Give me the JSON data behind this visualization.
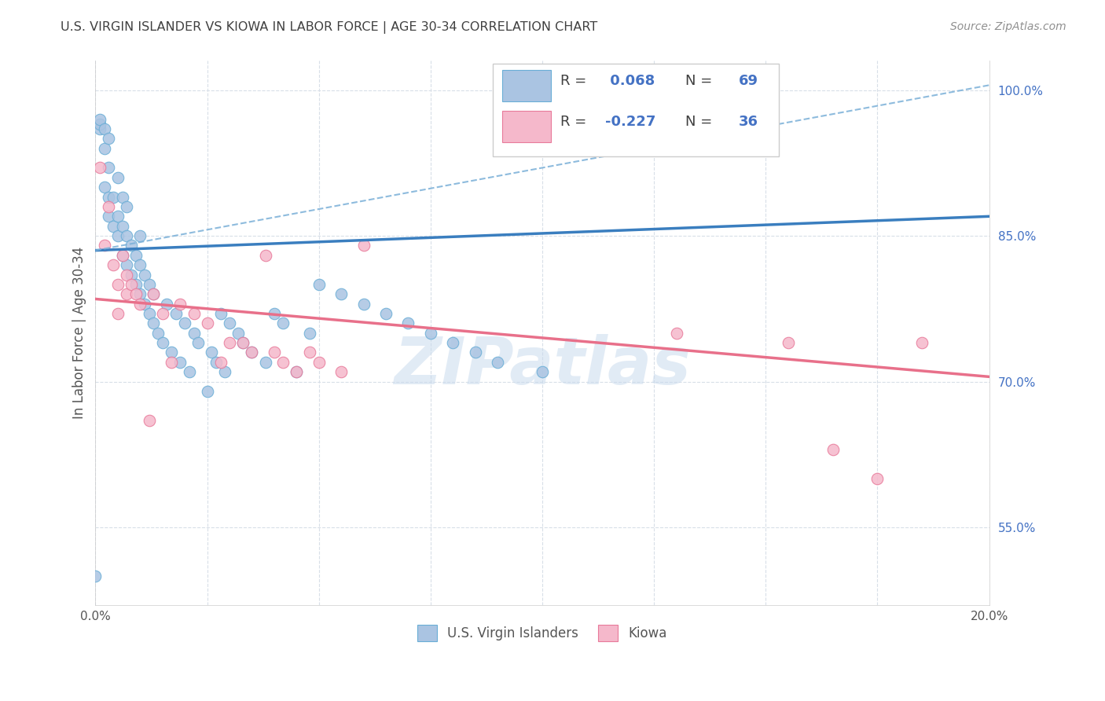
{
  "title": "U.S. VIRGIN ISLANDER VS KIOWA IN LABOR FORCE | AGE 30-34 CORRELATION CHART",
  "source": "Source: ZipAtlas.com",
  "ylabel": "In Labor Force | Age 30-34",
  "xmin": 0.0,
  "xmax": 0.2,
  "ymin": 47.0,
  "ymax": 103.0,
  "blue_R": 0.068,
  "blue_N": 69,
  "pink_R": -0.227,
  "pink_N": 36,
  "blue_color": "#aac4e2",
  "blue_edge": "#6aaed6",
  "pink_color": "#f5b8cb",
  "pink_edge": "#e87a9a",
  "blue_line_color": "#3a7ebf",
  "pink_line_color": "#e8708a",
  "dash_line_color": "#7ab0d8",
  "grid_color": "#d8dfe8",
  "title_color": "#404040",
  "source_color": "#909090",
  "legend_R_color": "#404040",
  "legend_N_color": "#4472c4",
  "ytick_color": "#4472c4",
  "xtick_color": "#555555",
  "ylabel_color": "#555555",
  "watermark": "ZIPatlas",
  "watermark_color": "#c5d8ec",
  "background_color": "#ffffff",
  "blue_line_y0": 83.5,
  "blue_line_y1": 87.0,
  "pink_line_y0": 78.5,
  "pink_line_y1": 70.5,
  "dash_line_y0": 83.5,
  "dash_line_y1": 100.5,
  "blue_dots_x": [
    0.0,
    0.001,
    0.001,
    0.001,
    0.002,
    0.002,
    0.002,
    0.003,
    0.003,
    0.003,
    0.003,
    0.004,
    0.004,
    0.005,
    0.005,
    0.005,
    0.006,
    0.006,
    0.006,
    0.007,
    0.007,
    0.007,
    0.008,
    0.008,
    0.009,
    0.009,
    0.01,
    0.01,
    0.01,
    0.011,
    0.011,
    0.012,
    0.012,
    0.013,
    0.013,
    0.014,
    0.015,
    0.016,
    0.017,
    0.018,
    0.019,
    0.02,
    0.021,
    0.022,
    0.023,
    0.025,
    0.026,
    0.027,
    0.028,
    0.029,
    0.03,
    0.032,
    0.033,
    0.035,
    0.038,
    0.04,
    0.042,
    0.045,
    0.048,
    0.05,
    0.055,
    0.06,
    0.065,
    0.07,
    0.075,
    0.08,
    0.085,
    0.09,
    0.1
  ],
  "blue_dots_y": [
    50.0,
    96.0,
    96.5,
    97.0,
    90.0,
    94.0,
    96.0,
    87.0,
    89.0,
    92.0,
    95.0,
    86.0,
    89.0,
    85.0,
    87.0,
    91.0,
    83.0,
    86.0,
    89.0,
    82.0,
    85.0,
    88.0,
    81.0,
    84.0,
    80.0,
    83.0,
    79.0,
    82.0,
    85.0,
    78.0,
    81.0,
    77.0,
    80.0,
    76.0,
    79.0,
    75.0,
    74.0,
    78.0,
    73.0,
    77.0,
    72.0,
    76.0,
    71.0,
    75.0,
    74.0,
    69.0,
    73.0,
    72.0,
    77.0,
    71.0,
    76.0,
    75.0,
    74.0,
    73.0,
    72.0,
    77.0,
    76.0,
    71.0,
    75.0,
    80.0,
    79.0,
    78.0,
    77.0,
    76.0,
    75.0,
    74.0,
    73.0,
    72.0,
    71.0
  ],
  "pink_dots_x": [
    0.001,
    0.002,
    0.003,
    0.004,
    0.005,
    0.005,
    0.006,
    0.007,
    0.007,
    0.008,
    0.009,
    0.01,
    0.012,
    0.013,
    0.015,
    0.017,
    0.019,
    0.022,
    0.025,
    0.028,
    0.03,
    0.033,
    0.035,
    0.038,
    0.04,
    0.042,
    0.045,
    0.048,
    0.05,
    0.055,
    0.06,
    0.13,
    0.155,
    0.165,
    0.175,
    0.185
  ],
  "pink_dots_y": [
    92.0,
    84.0,
    88.0,
    82.0,
    80.0,
    77.0,
    83.0,
    81.0,
    79.0,
    80.0,
    79.0,
    78.0,
    66.0,
    79.0,
    77.0,
    72.0,
    78.0,
    77.0,
    76.0,
    72.0,
    74.0,
    74.0,
    73.0,
    83.0,
    73.0,
    72.0,
    71.0,
    73.0,
    72.0,
    71.0,
    84.0,
    75.0,
    74.0,
    63.0,
    60.0,
    74.0
  ]
}
